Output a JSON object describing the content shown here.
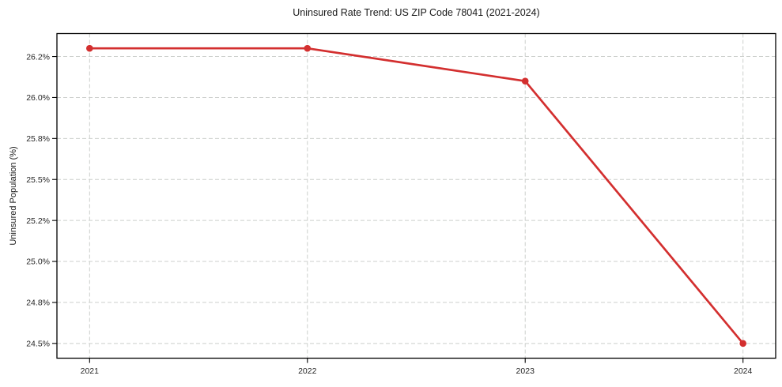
{
  "figure": {
    "background_color": "#ffffff"
  },
  "chart_data": {
    "type": "line",
    "title": "Uninsured Rate Trend: US ZIP Code 78041 (2021-2024)",
    "xlabel": "",
    "ylabel": "Uninsured Population (%)",
    "x": [
      2021,
      2022,
      2023,
      2024
    ],
    "values": [
      26.3,
      26.3,
      26.1,
      24.5
    ],
    "unit": "%",
    "line_color": "#d32f2f",
    "marker_style": "circle",
    "grid": true,
    "grid_style": "dashed",
    "legend": false,
    "xlim": [
      2020.85,
      2024.15
    ],
    "ylim": [
      24.41,
      26.39
    ],
    "x_ticks": [
      {
        "value": 2021,
        "label": "2021"
      },
      {
        "value": 2022,
        "label": "2022"
      },
      {
        "value": 2023,
        "label": "2023"
      },
      {
        "value": 2024,
        "label": "2024"
      }
    ],
    "y_ticks": [
      {
        "value": 24.5,
        "label": "24.5%"
      },
      {
        "value": 24.75,
        "label": "24.8%"
      },
      {
        "value": 25.0,
        "label": "25.0%"
      },
      {
        "value": 25.25,
        "label": "25.2%"
      },
      {
        "value": 25.5,
        "label": "25.5%"
      },
      {
        "value": 25.75,
        "label": "25.8%"
      },
      {
        "value": 26.0,
        "label": "26.0%"
      },
      {
        "value": 26.25,
        "label": "26.2%"
      }
    ]
  }
}
